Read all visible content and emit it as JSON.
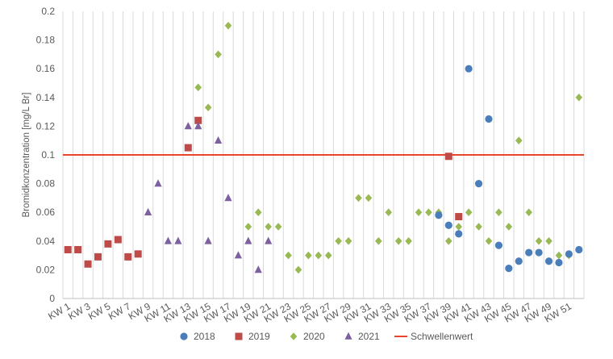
{
  "chart_data": {
    "type": "scatter",
    "title": "",
    "xlabel": "",
    "ylabel": "Bromidkonzentration [mg/L Br]",
    "ylim": [
      0,
      0.2
    ],
    "yticks": [
      0,
      0.02,
      0.04,
      0.06,
      0.08,
      0.1,
      0.12,
      0.14,
      0.16,
      0.18,
      0.2
    ],
    "ytick_labels": [
      "0",
      "0.02",
      "0.04",
      "0.06",
      "0.08",
      "0.1",
      "0.12",
      "0.14",
      "0.16",
      "0.18",
      "0.2"
    ],
    "xlim": [
      1,
      52
    ],
    "xtick_values": [
      1,
      3,
      5,
      7,
      9,
      11,
      13,
      15,
      17,
      19,
      21,
      23,
      25,
      27,
      29,
      31,
      33,
      35,
      37,
      39,
      41,
      43,
      45,
      47,
      49,
      51
    ],
    "xtick_labels": [
      "KW 1",
      "KW 3",
      "KW 5",
      "KW 7",
      "KW 9",
      "KW 11",
      "KW 13",
      "KW 15",
      "KW 17",
      "KW 19",
      "KW 21",
      "KW 23",
      "KW 25",
      "KW 27",
      "KW 29",
      "KW 31",
      "KW 33",
      "KW 35",
      "KW 37",
      "KW 39",
      "KW 41",
      "KW 43",
      "KW 45",
      "KW 47",
      "KW 49",
      "KW 51"
    ],
    "grid": "vertical",
    "legend_position": "bottom",
    "series": [
      {
        "name": "2018",
        "marker": "circle",
        "color": "#4a7ebb",
        "points": [
          [
            38,
            0.058
          ],
          [
            39,
            0.051
          ],
          [
            40,
            0.045
          ],
          [
            41,
            0.16
          ],
          [
            42,
            0.08
          ],
          [
            43,
            0.125
          ],
          [
            44,
            0.037
          ],
          [
            45,
            0.021
          ],
          [
            46,
            0.026
          ],
          [
            47,
            0.032
          ],
          [
            48,
            0.032
          ],
          [
            49,
            0.026
          ],
          [
            50,
            0.025
          ],
          [
            51,
            0.031
          ],
          [
            52,
            0.034
          ]
        ]
      },
      {
        "name": "2019",
        "marker": "square",
        "color": "#be4b48",
        "points": [
          [
            1,
            0.034
          ],
          [
            2,
            0.034
          ],
          [
            3,
            0.024
          ],
          [
            4,
            0.029
          ],
          [
            5,
            0.038
          ],
          [
            6,
            0.041
          ],
          [
            7,
            0.029
          ],
          [
            8,
            0.031
          ],
          [
            13,
            0.105
          ],
          [
            14,
            0.124
          ],
          [
            39,
            0.099
          ],
          [
            40,
            0.057
          ]
        ]
      },
      {
        "name": "2020",
        "marker": "diamond",
        "color": "#98b954",
        "points": [
          [
            14,
            0.147
          ],
          [
            15,
            0.133
          ],
          [
            16,
            0.17
          ],
          [
            17,
            0.19
          ],
          [
            19,
            0.05
          ],
          [
            20,
            0.06
          ],
          [
            21,
            0.05
          ],
          [
            22,
            0.05
          ],
          [
            23,
            0.03
          ],
          [
            24,
            0.02
          ],
          [
            25,
            0.03
          ],
          [
            26,
            0.03
          ],
          [
            27,
            0.03
          ],
          [
            28,
            0.04
          ],
          [
            29,
            0.04
          ],
          [
            30,
            0.07
          ],
          [
            31,
            0.07
          ],
          [
            32,
            0.04
          ],
          [
            33,
            0.06
          ],
          [
            34,
            0.04
          ],
          [
            35,
            0.04
          ],
          [
            36,
            0.06
          ],
          [
            37,
            0.06
          ],
          [
            38,
            0.06
          ],
          [
            39,
            0.04
          ],
          [
            40,
            0.05
          ],
          [
            41,
            0.06
          ],
          [
            42,
            0.05
          ],
          [
            43,
            0.04
          ],
          [
            44,
            0.06
          ],
          [
            45,
            0.05
          ],
          [
            46,
            0.11
          ],
          [
            47,
            0.06
          ],
          [
            48,
            0.04
          ],
          [
            49,
            0.04
          ],
          [
            50,
            0.03
          ],
          [
            51,
            0.03
          ],
          [
            52,
            0.14
          ]
        ]
      },
      {
        "name": "2021",
        "marker": "triangle",
        "color": "#7d60a0",
        "points": [
          [
            9,
            0.06
          ],
          [
            10,
            0.08
          ],
          [
            11,
            0.04
          ],
          [
            12,
            0.04
          ],
          [
            13,
            0.12
          ],
          [
            14,
            0.12
          ],
          [
            15,
            0.04
          ],
          [
            16,
            0.11
          ],
          [
            17,
            0.07
          ],
          [
            18,
            0.03
          ],
          [
            19,
            0.04
          ],
          [
            20,
            0.02
          ],
          [
            21,
            0.04
          ]
        ]
      }
    ],
    "threshold": {
      "name": "Schwellenwert",
      "value": 0.1,
      "color": "#e8452c"
    }
  }
}
